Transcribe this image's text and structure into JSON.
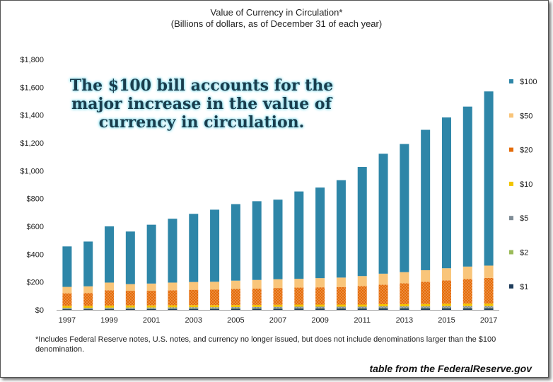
{
  "chart_data": {
    "type": "bar",
    "stacked": true,
    "title": "Value of Currency in Circulation*",
    "subtitle": "(Billions of dollars, as of December 31 of each year)",
    "categories": [
      "1997",
      "1998",
      "1999",
      "2000",
      "2001",
      "2002",
      "2003",
      "2004",
      "2005",
      "2006",
      "2007",
      "2008",
      "2009",
      "2010",
      "2011",
      "2012",
      "2013",
      "2014",
      "2015",
      "2016",
      "2017"
    ],
    "x_tick_labels": [
      "1997",
      "1999",
      "2001",
      "2003",
      "2005",
      "2007",
      "2009",
      "2011",
      "2013",
      "2015",
      "2017"
    ],
    "y_tick_labels": [
      "$0",
      "$200",
      "$400",
      "$600",
      "$800",
      "$1,000",
      "$1,200",
      "$1,400",
      "$1,600",
      "$1,800"
    ],
    "ylim": [
      0,
      1800
    ],
    "grid": false,
    "legend_position": "right",
    "series": [
      {
        "name": "$1",
        "color": "#1f3d5c",
        "values": [
          6,
          6,
          6,
          7,
          7,
          8,
          8,
          8,
          9,
          9,
          9,
          10,
          10,
          10,
          10,
          11,
          11,
          11,
          12,
          12,
          12
        ]
      },
      {
        "name": "$2",
        "color": "#9bbb59",
        "values": [
          1,
          1,
          1,
          1,
          1,
          1,
          1,
          1,
          1,
          1,
          2,
          2,
          2,
          2,
          2,
          2,
          2,
          2,
          2,
          2,
          2
        ]
      },
      {
        "name": "$5",
        "color": "#7f8c96",
        "values": [
          8,
          8,
          9,
          9,
          9,
          9,
          10,
          10,
          10,
          11,
          11,
          11,
          11,
          11,
          11,
          12,
          12,
          12,
          13,
          13,
          13
        ]
      },
      {
        "name": "$10",
        "color": "#f2c500",
        "values": [
          14,
          14,
          15,
          15,
          15,
          15,
          15,
          15,
          15,
          15,
          15,
          15,
          15,
          15,
          15,
          16,
          16,
          17,
          17,
          18,
          18
        ]
      },
      {
        "name": "$20",
        "color": "#e46c0a",
        "values": [
          90,
          92,
          110,
          105,
          105,
          108,
          110,
          112,
          115,
          117,
          120,
          122,
          124,
          126,
          133,
          140,
          150,
          160,
          168,
          177,
          185
        ]
      },
      {
        "name": "$50",
        "color": "#f9c57a",
        "values": [
          46,
          48,
          55,
          48,
          52,
          55,
          56,
          56,
          60,
          62,
          63,
          63,
          66,
          68,
          72,
          79,
          80,
          83,
          87,
          89,
          88
        ]
      },
      {
        "name": "$100",
        "color": "#2e86a8",
        "values": [
          291,
          322,
          404,
          378,
          423,
          459,
          490,
          518,
          550,
          566,
          572,
          628,
          651,
          700,
          784,
          862,
          921,
          1009,
          1084,
          1150,
          1252
        ]
      }
    ]
  },
  "annotation": "The $100 bill accounts for the major increase in the value of currency in circulation.",
  "footnote": "*Includes Federal Reserve notes, U.S. notes, and currency no longer issued, but does not include denominations larger than the $100 denomination.",
  "credit": "table from the FederalReserve.gov",
  "colors": {
    "callout_text": "#1a3d4d",
    "callout_glow": "#6fd3e6"
  }
}
